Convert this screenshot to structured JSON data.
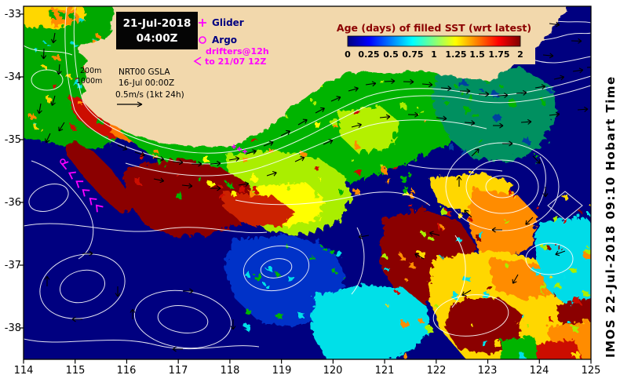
{
  "title_box": {
    "date": "21-Jul-2018",
    "time": "04:00Z"
  },
  "legend": {
    "glider_label": "Glider",
    "argo_label": "Argo",
    "drifters_line1": "drifters@12h",
    "drifters_line2": "to 21/07 12Z"
  },
  "colorbar": {
    "title": "Age (days) of filled SST (wrt latest)",
    "tick_labels": [
      "0",
      "0.25",
      "0.5",
      "0.75",
      "1",
      "1.25",
      "1.5",
      "1.75",
      "2"
    ]
  },
  "annotations": {
    "contour_200": "200m",
    "contour_1000": "1000m",
    "product": "NRT00 GSLA",
    "product_time": "16-Jul 00:00Z",
    "vector_scale": "0.5m/s (1kt 24h)"
  },
  "sidebar_text": "IMOS 22-Jul-2018 09:10 Hobart Time",
  "axes": {
    "x_tick_labels": [
      "114",
      "115",
      "116",
      "117",
      "118",
      "119",
      "120",
      "121",
      "122",
      "123",
      "124",
      "125"
    ],
    "y_tick_labels": [
      "-33",
      "-34",
      "-35",
      "-36",
      "-37",
      "-38"
    ]
  },
  "colors": {
    "land": "#f2d8ac",
    "ocean": "#000080",
    "marker": "#ff00ff",
    "colorbar_title": "#8b0000"
  }
}
